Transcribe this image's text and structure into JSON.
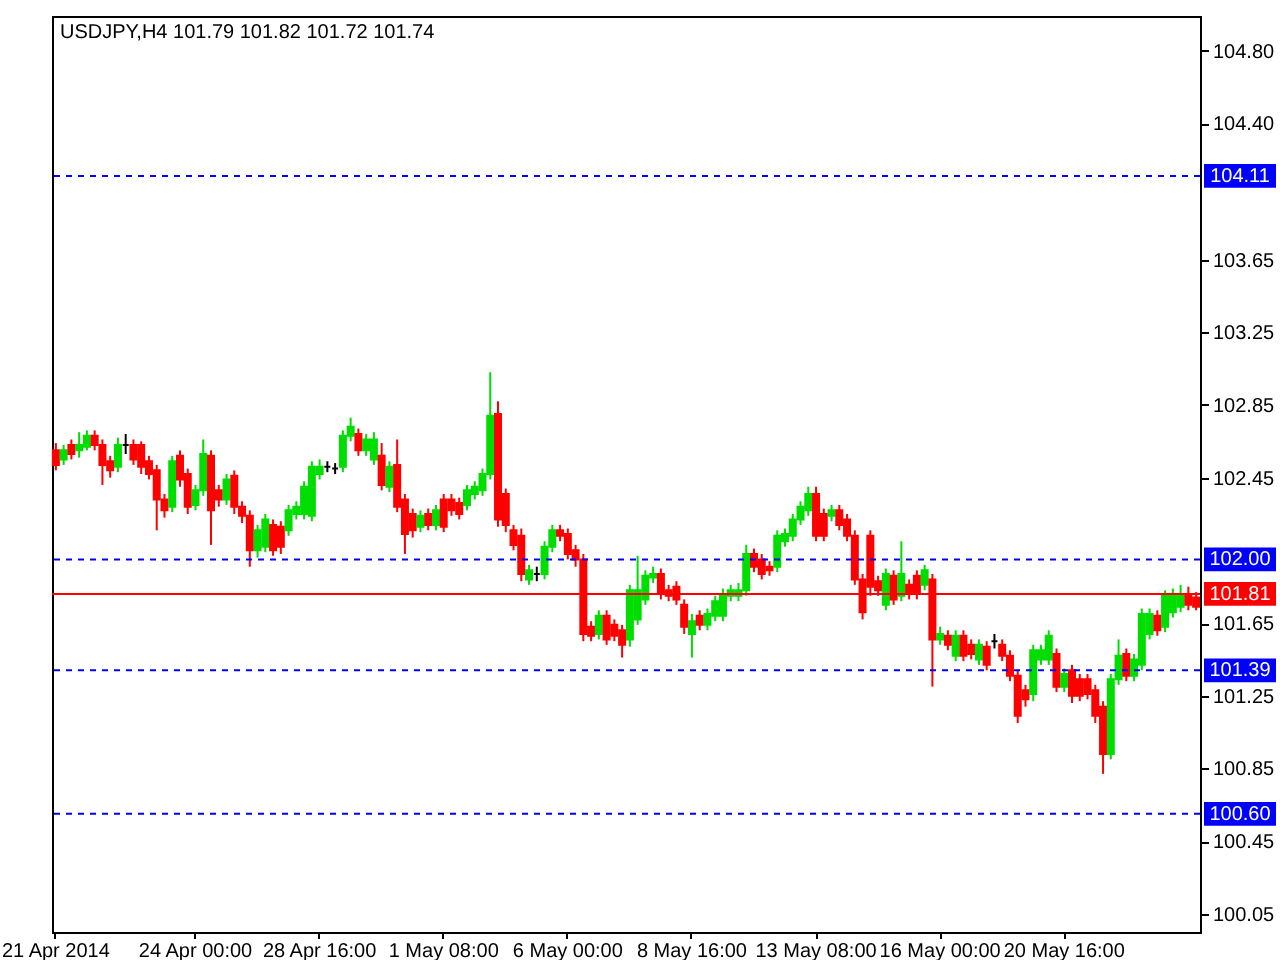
{
  "chart_data": {
    "type": "candlestick",
    "title": "USDJPY,H4  101.79 101.82 101.72 101.74",
    "categories": [
      "21 Apr 2014",
      null,
      null,
      null,
      null,
      null,
      null,
      null,
      null,
      null,
      null,
      null,
      null,
      null,
      null,
      null,
      null,
      null,
      "24 Apr 00:00",
      null,
      null,
      null,
      null,
      null,
      null,
      null,
      null,
      null,
      null,
      null,
      null,
      null,
      null,
      null,
      "28 Apr 16:00",
      null,
      null,
      null,
      null,
      null,
      null,
      null,
      null,
      null,
      null,
      null,
      null,
      null,
      null,
      null,
      "1 May 08:00",
      null,
      null,
      null,
      null,
      null,
      null,
      null,
      null,
      null,
      null,
      null,
      null,
      null,
      null,
      null,
      "6 May 00:00",
      null,
      null,
      null,
      null,
      null,
      null,
      null,
      null,
      null,
      null,
      null,
      null,
      null,
      null,
      null,
      "8 May 16:00",
      null,
      null,
      null,
      null,
      null,
      null,
      null,
      null,
      null,
      null,
      null,
      null,
      null,
      null,
      null,
      "13 May 08:00",
      null,
      null,
      null,
      null,
      null,
      null,
      null,
      null,
      null,
      null,
      null,
      null,
      null,
      null,
      null,
      "16 May 00:00",
      null,
      null,
      null,
      null,
      null,
      null,
      null,
      null,
      null,
      null,
      null,
      null,
      null,
      null,
      null,
      "20 May 16:00",
      null,
      null,
      null,
      null,
      null,
      null,
      null,
      null,
      null,
      null,
      null,
      null,
      null,
      null,
      null,
      null,
      null
    ],
    "ohlc": [
      [
        102.6,
        102.64,
        102.49,
        102.52
      ],
      [
        102.55,
        102.63,
        102.52,
        102.6
      ],
      [
        102.63,
        102.66,
        102.55,
        102.58
      ],
      [
        102.6,
        102.7,
        102.56,
        102.63
      ],
      [
        102.62,
        102.71,
        102.6,
        102.68
      ],
      [
        102.68,
        102.71,
        102.6,
        102.63
      ],
      [
        102.63,
        102.66,
        102.41,
        102.52
      ],
      [
        102.54,
        102.57,
        102.45,
        102.49
      ],
      [
        102.51,
        102.67,
        102.48,
        102.63
      ],
      [
        102.63,
        102.69,
        102.58,
        102.63
      ],
      [
        102.63,
        102.66,
        102.52,
        102.55
      ],
      [
        102.63,
        102.65,
        102.47,
        102.51
      ],
      [
        102.54,
        102.57,
        102.44,
        102.47
      ],
      [
        102.49,
        102.52,
        102.16,
        102.33
      ],
      [
        102.33,
        102.36,
        102.23,
        102.27
      ],
      [
        102.29,
        102.57,
        102.26,
        102.54
      ],
      [
        102.57,
        102.6,
        102.4,
        102.44
      ],
      [
        102.47,
        102.5,
        102.25,
        102.29
      ],
      [
        102.3,
        102.41,
        102.27,
        102.38
      ],
      [
        102.38,
        102.66,
        102.35,
        102.58
      ],
      [
        102.57,
        102.6,
        102.08,
        102.27
      ],
      [
        102.38,
        102.41,
        102.29,
        102.33
      ],
      [
        102.33,
        102.47,
        102.3,
        102.44
      ],
      [
        102.46,
        102.49,
        102.25,
        102.29
      ],
      [
        102.29,
        102.32,
        102.2,
        102.24
      ],
      [
        102.24,
        102.27,
        101.96,
        102.05
      ],
      [
        102.05,
        102.19,
        102.01,
        102.16
      ],
      [
        102.07,
        102.25,
        102.04,
        102.22
      ],
      [
        102.19,
        102.22,
        102.02,
        102.05
      ],
      [
        102.18,
        102.21,
        102.03,
        102.07
      ],
      [
        102.16,
        102.3,
        102.13,
        102.27
      ],
      [
        102.25,
        102.32,
        102.22,
        102.29
      ],
      [
        102.25,
        102.43,
        102.22,
        102.4
      ],
      [
        102.24,
        102.54,
        102.21,
        102.51
      ],
      [
        102.47,
        102.55,
        102.44,
        102.51
      ],
      [
        102.51,
        102.54,
        102.48,
        102.51
      ],
      [
        102.5,
        102.53,
        102.47,
        102.5
      ],
      [
        102.51,
        102.71,
        102.48,
        102.68
      ],
      [
        102.68,
        102.78,
        102.65,
        102.73
      ],
      [
        102.69,
        102.72,
        102.57,
        102.6
      ],
      [
        102.6,
        102.69,
        102.57,
        102.66
      ],
      [
        102.55,
        102.7,
        102.52,
        102.66
      ],
      [
        102.57,
        102.64,
        102.38,
        102.41
      ],
      [
        102.4,
        102.54,
        102.37,
        102.51
      ],
      [
        102.52,
        102.66,
        102.26,
        102.29
      ],
      [
        102.33,
        102.36,
        102.03,
        102.14
      ],
      [
        102.25,
        102.28,
        102.12,
        102.16
      ],
      [
        102.18,
        102.27,
        102.15,
        102.24
      ],
      [
        102.25,
        102.28,
        102.16,
        102.19
      ],
      [
        102.19,
        102.3,
        102.16,
        102.27
      ],
      [
        102.33,
        102.36,
        102.15,
        102.18
      ],
      [
        102.33,
        102.36,
        102.24,
        102.27
      ],
      [
        102.31,
        102.34,
        102.22,
        102.25
      ],
      [
        102.3,
        102.41,
        102.27,
        102.38
      ],
      [
        102.36,
        102.43,
        102.33,
        102.4
      ],
      [
        102.38,
        102.5,
        102.35,
        102.47
      ],
      [
        102.47,
        103.03,
        102.44,
        102.79
      ],
      [
        102.8,
        102.87,
        102.18,
        102.22
      ],
      [
        102.36,
        102.39,
        102.15,
        102.19
      ],
      [
        102.16,
        102.19,
        102.05,
        102.08
      ],
      [
        102.13,
        102.17,
        101.88,
        101.92
      ],
      [
        101.89,
        101.97,
        101.86,
        101.94
      ],
      [
        101.92,
        101.96,
        101.88,
        101.92
      ],
      [
        101.92,
        102.1,
        101.89,
        102.07
      ],
      [
        102.07,
        102.19,
        102.04,
        102.16
      ],
      [
        102.16,
        102.19,
        102.1,
        102.13
      ],
      [
        102.14,
        102.17,
        102.0,
        102.03
      ],
      [
        102.05,
        102.08,
        101.96,
        102.0
      ],
      [
        102.0,
        102.03,
        101.55,
        101.59
      ],
      [
        101.63,
        101.66,
        101.55,
        101.58
      ],
      [
        101.59,
        101.72,
        101.56,
        101.69
      ],
      [
        101.69,
        101.72,
        101.53,
        101.56
      ],
      [
        101.64,
        101.67,
        101.55,
        101.58
      ],
      [
        101.61,
        101.64,
        101.46,
        101.53
      ],
      [
        101.56,
        101.86,
        101.52,
        101.83
      ],
      [
        101.67,
        102.02,
        101.64,
        101.83
      ],
      [
        101.78,
        101.94,
        101.75,
        101.91
      ],
      [
        101.9,
        101.96,
        101.87,
        101.92
      ],
      [
        101.92,
        101.95,
        101.78,
        101.81
      ],
      [
        101.83,
        101.86,
        101.77,
        101.8
      ],
      [
        101.85,
        101.88,
        101.75,
        101.78
      ],
      [
        101.75,
        101.78,
        101.59,
        101.63
      ],
      [
        101.59,
        101.7,
        101.46,
        101.66
      ],
      [
        101.69,
        101.72,
        101.61,
        101.64
      ],
      [
        101.64,
        101.73,
        101.61,
        101.7
      ],
      [
        101.69,
        101.8,
        101.66,
        101.77
      ],
      [
        101.69,
        101.84,
        101.66,
        101.81
      ],
      [
        101.8,
        101.86,
        101.77,
        101.83
      ],
      [
        101.8,
        101.87,
        101.77,
        101.83
      ],
      [
        101.83,
        102.08,
        101.8,
        102.03
      ],
      [
        102.03,
        102.06,
        101.93,
        101.96
      ],
      [
        102.0,
        102.03,
        101.89,
        101.92
      ],
      [
        101.96,
        101.99,
        101.91,
        101.94
      ],
      [
        101.96,
        102.16,
        101.93,
        102.13
      ],
      [
        102.1,
        102.17,
        102.07,
        102.14
      ],
      [
        102.13,
        102.25,
        102.1,
        102.22
      ],
      [
        102.22,
        102.32,
        102.19,
        102.29
      ],
      [
        102.27,
        102.4,
        102.24,
        102.36
      ],
      [
        102.36,
        102.4,
        102.1,
        102.13
      ],
      [
        102.25,
        102.28,
        102.1,
        102.13
      ],
      [
        102.24,
        102.3,
        102.21,
        102.27
      ],
      [
        102.27,
        102.3,
        102.16,
        102.19
      ],
      [
        102.22,
        102.25,
        102.1,
        102.13
      ],
      [
        102.13,
        102.16,
        101.86,
        101.89
      ],
      [
        101.89,
        101.92,
        101.67,
        101.71
      ],
      [
        102.13,
        102.16,
        101.8,
        101.85
      ],
      [
        101.88,
        101.91,
        101.8,
        101.83
      ],
      [
        101.75,
        101.95,
        101.72,
        101.92
      ],
      [
        101.91,
        101.94,
        101.75,
        101.78
      ],
      [
        101.8,
        102.1,
        101.77,
        101.92
      ],
      [
        101.86,
        101.89,
        101.78,
        101.81
      ],
      [
        101.91,
        101.94,
        101.78,
        101.81
      ],
      [
        101.86,
        101.97,
        101.83,
        101.94
      ],
      [
        101.89,
        101.92,
        101.3,
        101.56
      ],
      [
        101.56,
        101.63,
        101.53,
        101.59
      ],
      [
        101.58,
        101.61,
        101.5,
        101.53
      ],
      [
        101.47,
        101.61,
        101.44,
        101.58
      ],
      [
        101.58,
        101.61,
        101.44,
        101.47
      ],
      [
        101.53,
        101.56,
        101.45,
        101.48
      ],
      [
        101.45,
        101.56,
        101.42,
        101.53
      ],
      [
        101.52,
        101.55,
        101.39,
        101.42
      ],
      [
        101.55,
        101.59,
        101.51,
        101.55
      ],
      [
        101.53,
        101.56,
        101.44,
        101.47
      ],
      [
        101.47,
        101.5,
        101.33,
        101.36
      ],
      [
        101.36,
        101.39,
        101.1,
        101.14
      ],
      [
        101.28,
        101.31,
        101.19,
        101.23
      ],
      [
        101.26,
        101.53,
        101.22,
        101.5
      ],
      [
        101.45,
        101.53,
        101.42,
        101.5
      ],
      [
        101.45,
        101.61,
        101.42,
        101.58
      ],
      [
        101.48,
        101.51,
        101.27,
        101.3
      ],
      [
        101.3,
        101.4,
        101.27,
        101.37
      ],
      [
        101.39,
        101.42,
        101.21,
        101.25
      ],
      [
        101.34,
        101.37,
        101.22,
        101.25
      ],
      [
        101.34,
        101.37,
        101.23,
        101.26
      ],
      [
        101.28,
        101.31,
        101.1,
        101.14
      ],
      [
        101.19,
        101.22,
        100.82,
        100.93
      ],
      [
        100.93,
        101.37,
        100.9,
        101.34
      ],
      [
        101.34,
        101.56,
        101.31,
        101.47
      ],
      [
        101.48,
        101.51,
        101.33,
        101.36
      ],
      [
        101.36,
        101.48,
        101.33,
        101.45
      ],
      [
        101.42,
        101.73,
        101.39,
        101.7
      ],
      [
        101.59,
        101.73,
        101.56,
        101.7
      ],
      [
        101.69,
        101.72,
        101.58,
        101.61
      ],
      [
        101.63,
        101.83,
        101.6,
        101.8
      ],
      [
        101.71,
        101.84,
        101.68,
        101.8
      ],
      [
        101.74,
        101.86,
        101.71,
        101.8
      ],
      [
        101.8,
        101.85,
        101.72,
        101.75
      ],
      [
        101.79,
        101.82,
        101.72,
        101.74
      ]
    ],
    "colors": [
      "#ff0000",
      "#00dd00",
      "#ff0000",
      "#00dd00",
      "#00dd00",
      "#ff0000",
      "#ff0000",
      "#ff0000",
      "#00dd00",
      "#000000",
      "#ff0000",
      "#ff0000",
      "#ff0000",
      "#ff0000",
      "#ff0000",
      "#00dd00",
      "#ff0000",
      "#ff0000",
      "#00dd00",
      "#00dd00",
      "#ff0000",
      "#ff0000",
      "#00dd00",
      "#ff0000",
      "#ff0000",
      "#ff0000",
      "#00dd00",
      "#00dd00",
      "#ff0000",
      "#ff0000",
      "#00dd00",
      "#00dd00",
      "#00dd00",
      "#00dd00",
      "#00dd00",
      "#000000",
      "#000000",
      "#00dd00",
      "#00dd00",
      "#ff0000",
      "#00dd00",
      "#00dd00",
      "#ff0000",
      "#00dd00",
      "#ff0000",
      "#ff0000",
      "#ff0000",
      "#00dd00",
      "#ff0000",
      "#00dd00",
      "#ff0000",
      "#ff0000",
      "#ff0000",
      "#00dd00",
      "#00dd00",
      "#00dd00",
      "#00dd00",
      "#ff0000",
      "#ff0000",
      "#ff0000",
      "#ff0000",
      "#00dd00",
      "#000000",
      "#00dd00",
      "#00dd00",
      "#ff0000",
      "#ff0000",
      "#ff0000",
      "#ff0000",
      "#ff0000",
      "#00dd00",
      "#ff0000",
      "#ff0000",
      "#ff0000",
      "#00dd00",
      "#00dd00",
      "#00dd00",
      "#00dd00",
      "#ff0000",
      "#ff0000",
      "#ff0000",
      "#ff0000",
      "#00dd00",
      "#ff0000",
      "#00dd00",
      "#00dd00",
      "#00dd00",
      "#00dd00",
      "#00dd00",
      "#00dd00",
      "#ff0000",
      "#ff0000",
      "#ff0000",
      "#00dd00",
      "#00dd00",
      "#00dd00",
      "#00dd00",
      "#00dd00",
      "#ff0000",
      "#ff0000",
      "#00dd00",
      "#ff0000",
      "#ff0000",
      "#ff0000",
      "#ff0000",
      "#ff0000",
      "#ff0000",
      "#00dd00",
      "#ff0000",
      "#00dd00",
      "#ff0000",
      "#ff0000",
      "#00dd00",
      "#ff0000",
      "#00dd00",
      "#ff0000",
      "#00dd00",
      "#ff0000",
      "#ff0000",
      "#00dd00",
      "#ff0000",
      "#000000",
      "#ff0000",
      "#ff0000",
      "#ff0000",
      "#ff0000",
      "#00dd00",
      "#00dd00",
      "#00dd00",
      "#ff0000",
      "#00dd00",
      "#ff0000",
      "#ff0000",
      "#ff0000",
      "#ff0000",
      "#ff0000",
      "#00dd00",
      "#00dd00",
      "#ff0000",
      "#00dd00",
      "#00dd00",
      "#00dd00",
      "#ff0000",
      "#00dd00",
      "#00dd00",
      "#00dd00",
      "#ff0000",
      "#ff0000"
    ],
    "ylim": [
      99.95,
      104.99
    ],
    "yticks": [
      100.05,
      100.45,
      100.85,
      101.25,
      101.65,
      102.45,
      102.85,
      103.25,
      103.65,
      {
        "value": 104.4,
        "label": "104.40"
      },
      {
        "value": 104.8,
        "label": "104.80"
      }
    ],
    "ref_lines": [
      {
        "axis": "y",
        "value": 104.11,
        "label": "104.11",
        "color": "#0000ff",
        "line_style": "dashed"
      },
      {
        "axis": "y",
        "value": 102.0,
        "label": "102.00",
        "color": "#0000ff",
        "line_style": "dashed"
      },
      {
        "axis": "y",
        "value": 101.81,
        "label": "101.81",
        "color": "#ff0000",
        "line_style": "solid"
      },
      {
        "axis": "y",
        "value": 101.39,
        "label": "101.39",
        "color": "#0000ff",
        "line_style": "dashed"
      },
      {
        "axis": "y",
        "value": 100.6,
        "label": "100.60",
        "color": "#0000ff",
        "line_style": "dashed"
      }
    ],
    "grid": false
  }
}
